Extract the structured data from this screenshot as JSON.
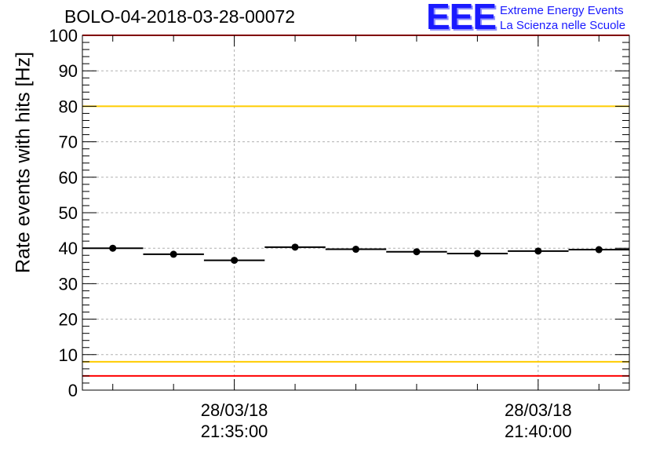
{
  "title": "BOLO-04-2018-03-28-00072",
  "logo": {
    "mark": "EEE",
    "line1": "Extreme Energy Events",
    "line2": "La Scienza nelle Scuole"
  },
  "chart_data": {
    "type": "scatter",
    "title": "BOLO-04-2018-03-28-00072",
    "ylabel": "Rate events with hits [Hz]",
    "xlabel": "",
    "ylim": [
      0,
      100
    ],
    "y_ticks": [
      0,
      10,
      20,
      30,
      40,
      50,
      60,
      70,
      80,
      90,
      100
    ],
    "x_ticks": [
      {
        "date": "28/03/18",
        "time": "21:35:00"
      },
      {
        "date": "28/03/18",
        "time": "21:40:00"
      }
    ],
    "grid": true,
    "series": [
      {
        "x": [
          "21:33:00",
          "21:34:00",
          "21:35:00",
          "21:36:00",
          "21:37:00",
          "21:38:00",
          "21:39:00",
          "21:40:00",
          "21:41:00"
        ],
        "values": [
          40.0,
          38.3,
          36.6,
          40.3,
          39.7,
          39.0,
          38.5,
          39.2,
          39.6
        ]
      }
    ],
    "reference_lines": [
      {
        "y": 100,
        "color": "#ff0000"
      },
      {
        "y": 80,
        "color": "#ffcc00"
      },
      {
        "y": 8,
        "color": "#ffcc00"
      },
      {
        "y": 4,
        "color": "#ff0000"
      }
    ]
  }
}
